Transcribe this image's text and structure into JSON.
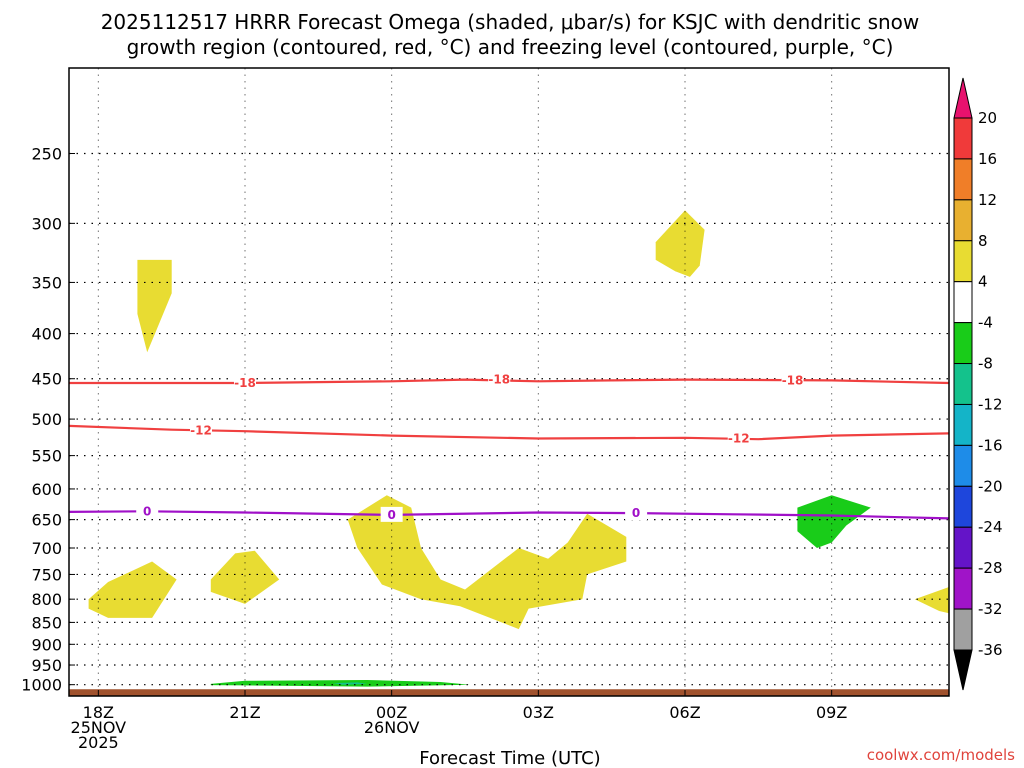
{
  "chart_data": {
    "type": "contour",
    "title_lines": [
      "2025112517 HRRR Forecast Omega (shaded, μbar/s) for KSJC with dendritic snow",
      "growth region (contoured, red, °C) and freezing level (contoured, purple, °C)"
    ],
    "xlabel": "Forecast Time (UTC)",
    "x_ticks": [
      {
        "hour": 0,
        "lines": [
          "18Z",
          "25NOV",
          "2025"
        ]
      },
      {
        "hour": 3,
        "lines": [
          "21Z"
        ]
      },
      {
        "hour": 6,
        "lines": [
          "00Z",
          "26NOV"
        ]
      },
      {
        "hour": 9,
        "lines": [
          "03Z"
        ]
      },
      {
        "hour": 12,
        "lines": [
          "06Z"
        ]
      },
      {
        "hour": 15,
        "lines": [
          "09Z"
        ]
      }
    ],
    "xlim": [
      -0.6,
      17.4
    ],
    "y_ticks": [
      250,
      300,
      350,
      400,
      450,
      500,
      550,
      600,
      650,
      700,
      750,
      800,
      850,
      900,
      950,
      1000
    ],
    "ylim": [
      200,
      1030
    ],
    "y_scale": "log-pressure",
    "grid": true,
    "colorbar": {
      "labels": [
        "20",
        "16",
        "12",
        "8",
        "4",
        "-4",
        "-8",
        "-12",
        "-16",
        "-20",
        "-24",
        "-28",
        "-32",
        "-36"
      ],
      "colors": [
        "#e8126e",
        "#f03a3a",
        "#f07e28",
        "#e8b030",
        "#e8dc32",
        "#ffffff",
        "#19cc19",
        "#14c28c",
        "#14b4c8",
        "#1e8ce8",
        "#1e46dc",
        "#6414c8",
        "#a014c8",
        "#a0a0a0",
        "#000000"
      ]
    },
    "contours": [
      {
        "name": "-18",
        "color": "#f04040",
        "label": "-18",
        "points": [
          [
            -0.6,
            455
          ],
          [
            3,
            455
          ],
          [
            6,
            453
          ],
          [
            7.5,
            451
          ],
          [
            9,
            453
          ],
          [
            10.5,
            452
          ],
          [
            12,
            451
          ],
          [
            15,
            452
          ],
          [
            17.4,
            455
          ]
        ],
        "label_at": [
          [
            3,
            455
          ],
          [
            8.2,
            451
          ],
          [
            14.2,
            452
          ]
        ]
      },
      {
        "name": "-12",
        "color": "#f04040",
        "label": "-12",
        "points": [
          [
            -0.6,
            509
          ],
          [
            1.5,
            514
          ],
          [
            3,
            516
          ],
          [
            6,
            522
          ],
          [
            9,
            526
          ],
          [
            12,
            525
          ],
          [
            13.5,
            527
          ],
          [
            15,
            522
          ],
          [
            17.4,
            519
          ]
        ],
        "label_at": [
          [
            2.1,
            515
          ],
          [
            13.1,
            526
          ]
        ]
      },
      {
        "name": "0",
        "color": "#a010c8",
        "label": "0",
        "points": [
          [
            -0.6,
            637
          ],
          [
            1,
            636
          ],
          [
            3,
            638
          ],
          [
            6,
            642
          ],
          [
            9,
            638
          ],
          [
            11,
            639
          ],
          [
            13,
            641
          ],
          [
            15,
            643
          ],
          [
            17.4,
            648
          ]
        ],
        "label_at": [
          [
            1,
            636
          ],
          [
            6,
            642
          ],
          [
            11,
            639
          ]
        ]
      }
    ],
    "shaded_regions": [
      {
        "value": "4",
        "color": "#e8dc32",
        "points": [
          [
            0.8,
            330
          ],
          [
            1.5,
            330
          ],
          [
            1.5,
            360
          ],
          [
            1.2,
            395
          ],
          [
            1,
            420
          ],
          [
            0.8,
            380
          ]
        ]
      },
      {
        "value": "4",
        "color": "#e8dc32",
        "points": [
          [
            11.4,
            315
          ],
          [
            12,
            290
          ],
          [
            12.4,
            305
          ],
          [
            12.3,
            335
          ],
          [
            12.1,
            345
          ],
          [
            11.8,
            340
          ],
          [
            11.4,
            330
          ]
        ]
      },
      {
        "value": "4",
        "color": "#e8dc32",
        "points": [
          [
            -0.2,
            800
          ],
          [
            0.2,
            765
          ],
          [
            1.1,
            725
          ],
          [
            1.6,
            760
          ],
          [
            1.1,
            840
          ],
          [
            0.2,
            840
          ],
          [
            -0.2,
            820
          ]
        ]
      },
      {
        "value": "4",
        "color": "#e8dc32",
        "points": [
          [
            2.3,
            760
          ],
          [
            2.8,
            710
          ],
          [
            3.2,
            705
          ],
          [
            3.7,
            760
          ],
          [
            3,
            810
          ],
          [
            2.3,
            785
          ]
        ]
      },
      {
        "value": "4",
        "color": "#e8dc32",
        "points": [
          [
            5.1,
            650
          ],
          [
            5.9,
            610
          ],
          [
            6.4,
            630
          ],
          [
            6.6,
            700
          ],
          [
            7,
            760
          ],
          [
            7.5,
            780
          ],
          [
            8.6,
            700
          ],
          [
            9.2,
            720
          ],
          [
            9.6,
            690
          ],
          [
            10,
            640
          ],
          [
            10.8,
            680
          ],
          [
            10.8,
            725
          ],
          [
            10,
            750
          ],
          [
            9.9,
            800
          ],
          [
            8.8,
            820
          ],
          [
            8.6,
            865
          ],
          [
            7.4,
            815
          ],
          [
            6.6,
            800
          ],
          [
            5.8,
            770
          ],
          [
            5.3,
            700
          ]
        ]
      },
      {
        "value": "-4",
        "color": "#19cc19",
        "points": [
          [
            14.3,
            630
          ],
          [
            15,
            610
          ],
          [
            15.8,
            630
          ],
          [
            15.3,
            660
          ],
          [
            15,
            690
          ],
          [
            14.7,
            700
          ],
          [
            14.3,
            670
          ]
        ]
      },
      {
        "value": "4",
        "color": "#e8dc32",
        "points": [
          [
            16.7,
            800
          ],
          [
            17.4,
            775
          ],
          [
            17.4,
            830
          ],
          [
            17.2,
            825
          ]
        ]
      },
      {
        "value": "-4",
        "color": "#19cc19",
        "points": [
          [
            2.3,
            998
          ],
          [
            3,
            990
          ],
          [
            5.5,
            988
          ],
          [
            7,
            993
          ],
          [
            7.6,
            1000
          ],
          [
            5.5,
            1005
          ],
          [
            3,
            1002
          ],
          [
            2.3,
            1001
          ]
        ]
      },
      {
        "value": "-8",
        "color": "#14c28c",
        "points": [
          [
            4.8,
            996
          ],
          [
            5.3,
            994
          ],
          [
            5.5,
            998
          ],
          [
            5,
            1000
          ]
        ]
      }
    ],
    "terrain": {
      "color": "#a0522d",
      "from_pressure": 1012
    }
  },
  "credit": "coolwx.com/models"
}
